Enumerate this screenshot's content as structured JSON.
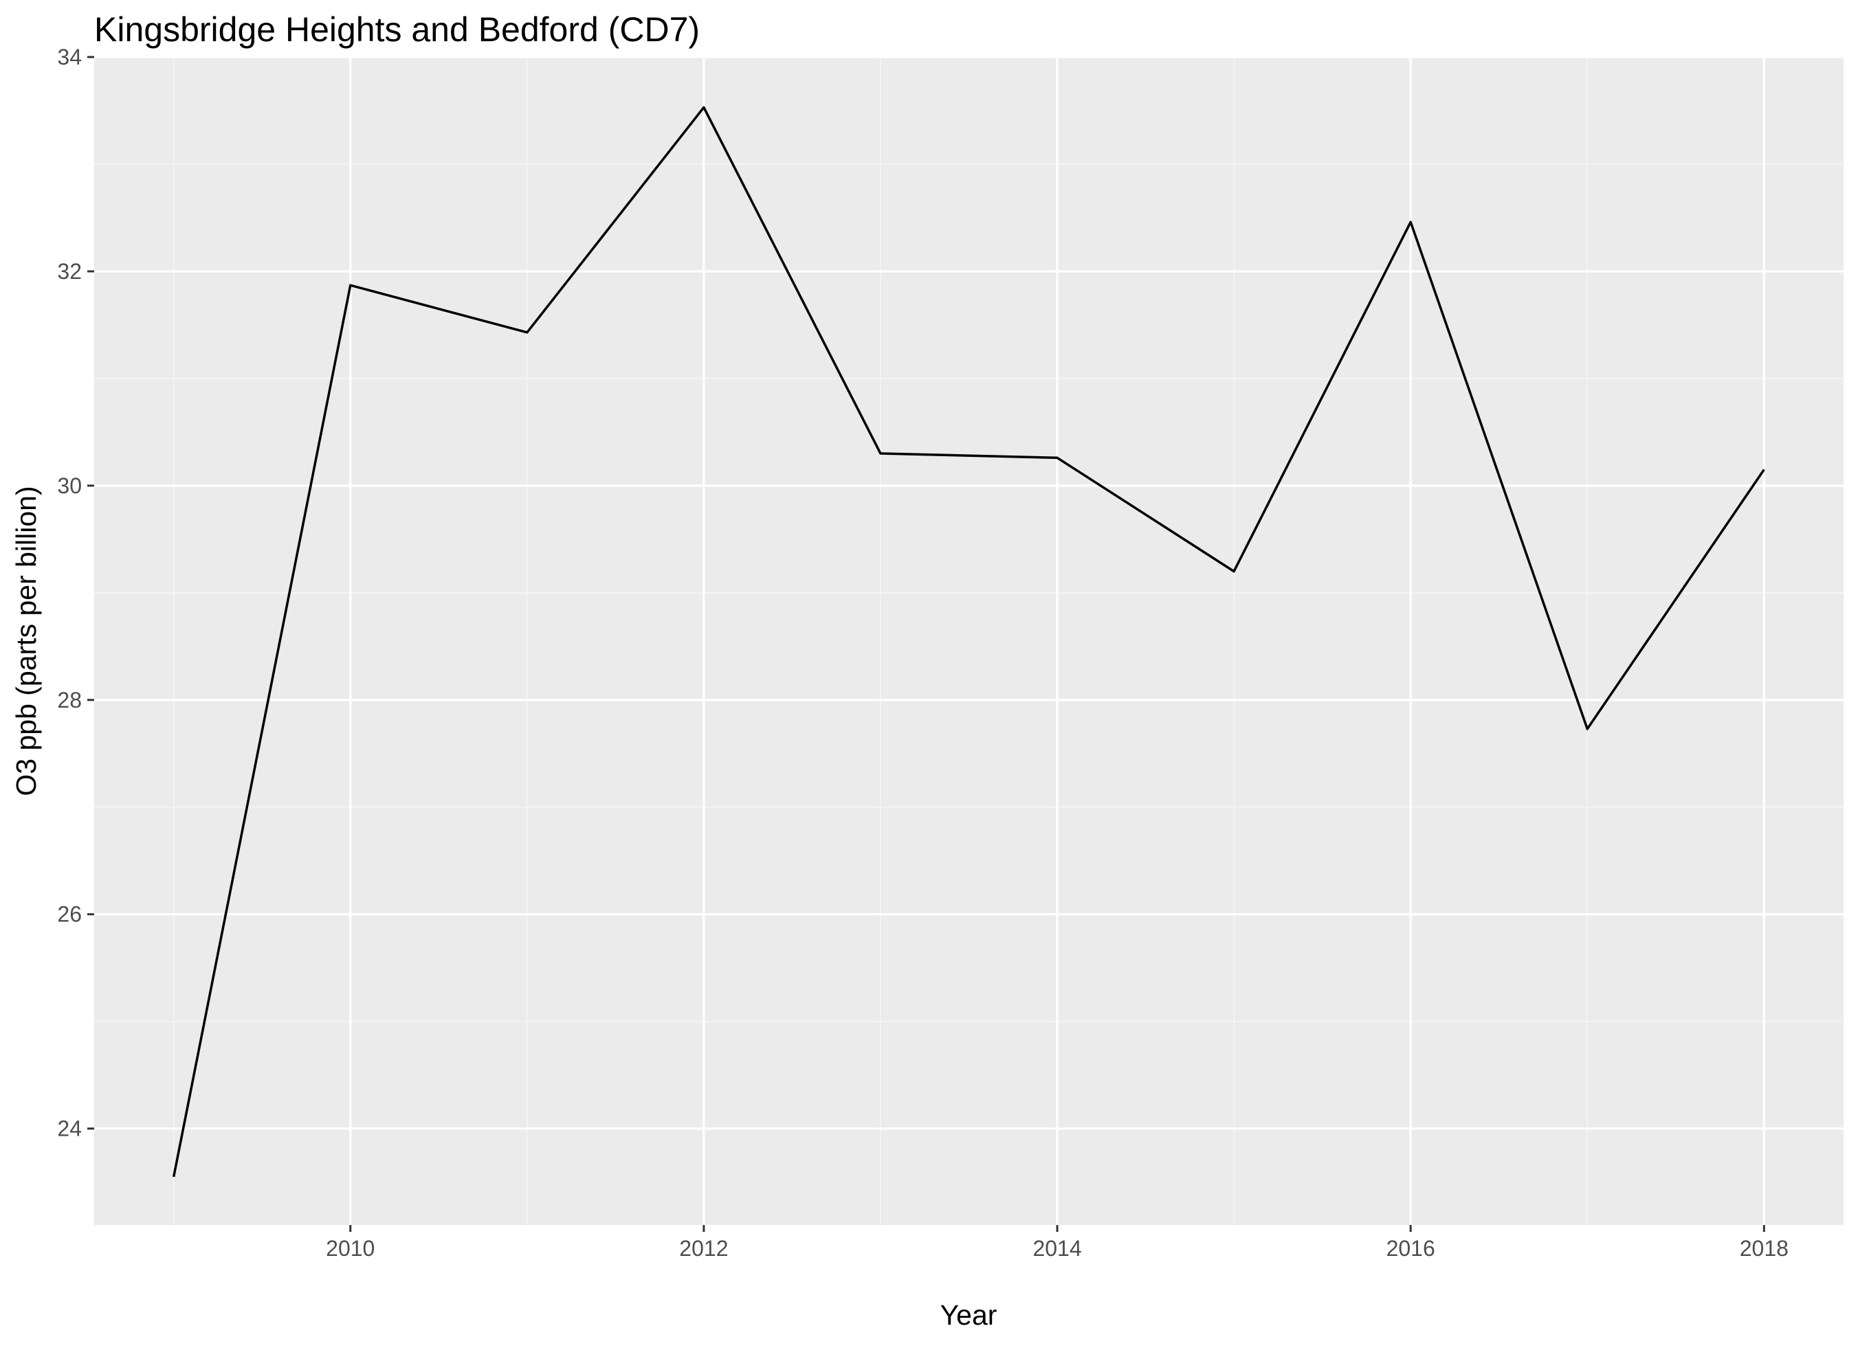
{
  "chart_data": {
    "type": "line",
    "title": "Kingsbridge Heights and Bedford (CD7)",
    "xlabel": "Year",
    "ylabel": "O3 ppb (parts per billion)",
    "x": [
      2009,
      2010,
      2011,
      2012,
      2013,
      2014,
      2015,
      2016,
      2017,
      2018
    ],
    "series": [
      {
        "values": [
          23.55,
          31.87,
          31.43,
          33.53,
          30.3,
          30.26,
          29.2,
          32.46,
          27.73,
          30.15
        ]
      }
    ],
    "xlim": [
      2008.55,
      2018.45
    ],
    "ylim": [
      23.1,
      34.0
    ],
    "xticks": [
      2010,
      2012,
      2014,
      2016,
      2018
    ],
    "yticks": [
      24,
      26,
      28,
      30,
      32,
      34
    ],
    "xtick_labels": [
      "2010",
      "2012",
      "2014",
      "2016",
      "2018"
    ],
    "ytick_labels": [
      "24",
      "26",
      "28",
      "30",
      "32",
      "34"
    ],
    "grid": true,
    "legend": "none",
    "colors": {
      "panel_background": "#ebebeb",
      "grid_major": "#ffffff",
      "grid_minor": "#f5f5f5",
      "line": "#000000",
      "tick_text": "#4d4d4d",
      "tick_mark": "#333333"
    }
  }
}
